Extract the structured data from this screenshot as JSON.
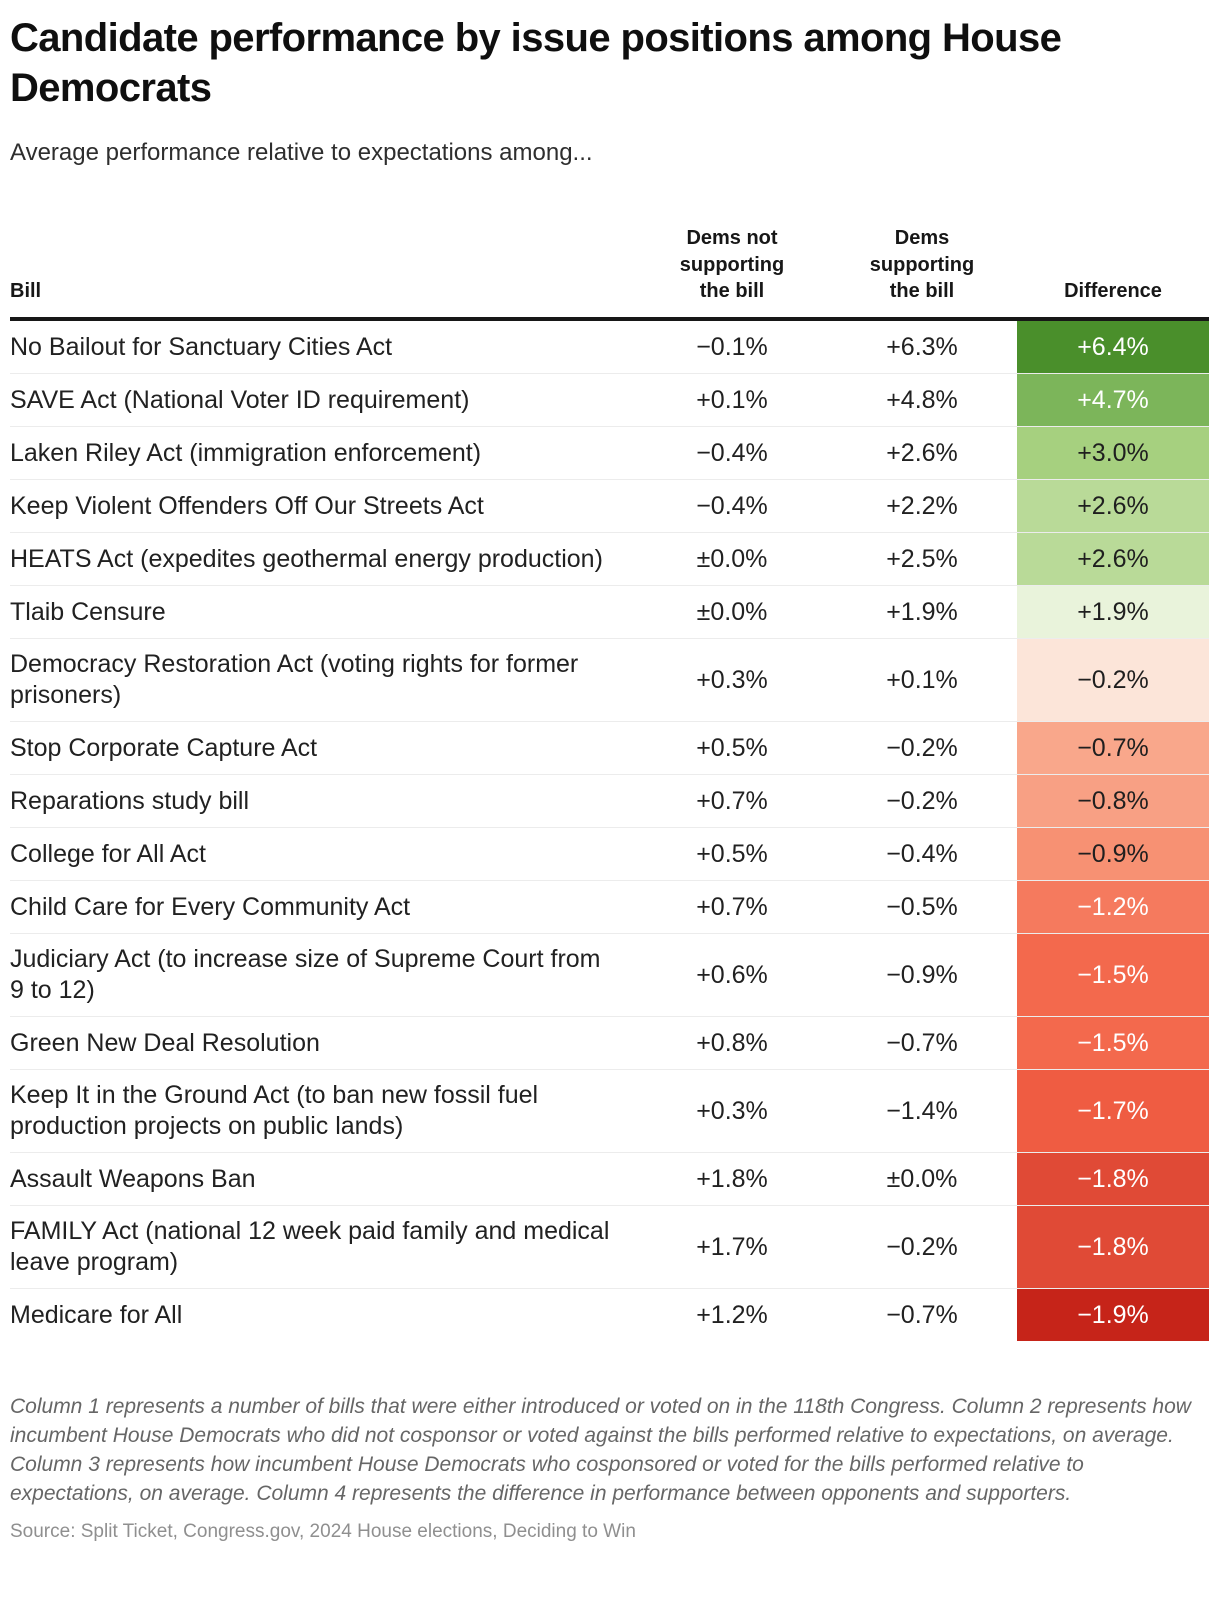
{
  "header": {
    "title": "Candidate performance by issue positions among House Democrats",
    "subtitle": "Average performance relative to expectations among..."
  },
  "chart_data": {
    "type": "table",
    "columns": [
      "Bill",
      "Dems not supporting the bill",
      "Dems supporting the bill",
      "Difference"
    ],
    "rows": [
      {
        "bill": "No Bailout for Sanctuary Cities Act",
        "not_supporting": "−0.1%",
        "supporting": "+6.3%",
        "difference": "+6.4%",
        "diff_bg": "#4a8f2b",
        "diff_text": "#ffffff"
      },
      {
        "bill": "SAVE Act (National Voter ID requirement)",
        "not_supporting": "+0.1%",
        "supporting": "+4.8%",
        "difference": "+4.7%",
        "diff_bg": "#7cb55a",
        "diff_text": "#ffffff"
      },
      {
        "bill": "Laken Riley Act (immigration enforcement)",
        "not_supporting": "−0.4%",
        "supporting": "+2.6%",
        "difference": "+3.0%",
        "diff_bg": "#a6d07f",
        "diff_text": "#1f1f1f"
      },
      {
        "bill": "Keep Violent Offenders Off Our Streets Act",
        "not_supporting": "−0.4%",
        "supporting": "+2.2%",
        "difference": "+2.6%",
        "diff_bg": "#b9da98",
        "diff_text": "#1f1f1f"
      },
      {
        "bill": "HEATS Act (expedites geothermal energy production)",
        "not_supporting": "±0.0%",
        "supporting": "+2.5%",
        "difference": "+2.6%",
        "diff_bg": "#b9da98",
        "diff_text": "#1f1f1f"
      },
      {
        "bill": "Tlaib Censure",
        "not_supporting": "±0.0%",
        "supporting": "+1.9%",
        "difference": "+1.9%",
        "diff_bg": "#e9f3db",
        "diff_text": "#1f1f1f"
      },
      {
        "bill": "Democracy Restoration Act (voting rights for former prisoners)",
        "not_supporting": "+0.3%",
        "supporting": "+0.1%",
        "difference": "−0.2%",
        "diff_bg": "#fce5d9",
        "diff_text": "#1f1f1f"
      },
      {
        "bill": "Stop Corporate Capture Act",
        "not_supporting": "+0.5%",
        "supporting": "−0.2%",
        "difference": "−0.7%",
        "diff_bg": "#f9a78b",
        "diff_text": "#1f1f1f"
      },
      {
        "bill": "Reparations study bill",
        "not_supporting": "+0.7%",
        "supporting": "−0.2%",
        "difference": "−0.8%",
        "diff_bg": "#f8a084",
        "diff_text": "#1f1f1f"
      },
      {
        "bill": "College for All Act",
        "not_supporting": "+0.5%",
        "supporting": "−0.4%",
        "difference": "−0.9%",
        "diff_bg": "#f79173",
        "diff_text": "#1f1f1f"
      },
      {
        "bill": "Child Care for Every Community Act",
        "not_supporting": "+0.7%",
        "supporting": "−0.5%",
        "difference": "−1.2%",
        "diff_bg": "#f57a5e",
        "diff_text": "#ffffff"
      },
      {
        "bill": "Judiciary Act (to increase size of Supreme Court from 9 to 12)",
        "not_supporting": "+0.6%",
        "supporting": "−0.9%",
        "difference": "−1.5%",
        "diff_bg": "#f3694d",
        "diff_text": "#ffffff"
      },
      {
        "bill": "Green New Deal Resolution",
        "not_supporting": "+0.8%",
        "supporting": "−0.7%",
        "difference": "−1.5%",
        "diff_bg": "#f3694d",
        "diff_text": "#ffffff"
      },
      {
        "bill": "Keep It in the Ground Act (to ban new fossil fuel production projects on public lands)",
        "not_supporting": "+0.3%",
        "supporting": "−1.4%",
        "difference": "−1.7%",
        "diff_bg": "#ef5c42",
        "diff_text": "#ffffff"
      },
      {
        "bill": "Assault Weapons Ban",
        "not_supporting": "+1.8%",
        "supporting": "±0.0%",
        "difference": "−1.8%",
        "diff_bg": "#e04a36",
        "diff_text": "#ffffff"
      },
      {
        "bill": "FAMILY Act (national 12 week paid family and medical leave program)",
        "not_supporting": "+1.7%",
        "supporting": "−0.2%",
        "difference": "−1.8%",
        "diff_bg": "#e04a36",
        "diff_text": "#ffffff"
      },
      {
        "bill": "Medicare for All",
        "not_supporting": "+1.2%",
        "supporting": "−0.7%",
        "difference": "−1.9%",
        "diff_bg": "#c62419",
        "diff_text": "#ffffff"
      }
    ],
    "color_scale": {
      "positive_max": "#4a8f2b",
      "neutral": "#ffffff",
      "negative_max": "#c62419"
    }
  },
  "footer": {
    "note": "Column 1 represents a number of bills that were either introduced or voted on in the 118th Congress. Column 2 represents how incumbent House Democrats who did not cosponsor or voted against the bills performed relative to expectations, on average. Column 3 represents how incumbent House Democrats who cosponsored or voted for the bills performed relative to expectations, on average. Column 4 represents the difference in performance between opponents and supporters.",
    "source": "Source: Split Ticket, Congress.gov, 2024 House elections, Deciding to Win"
  }
}
